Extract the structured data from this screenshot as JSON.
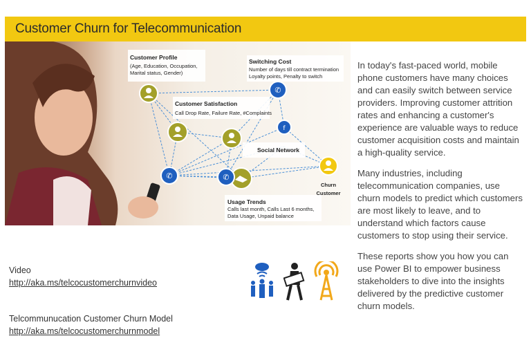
{
  "header": {
    "title": "Customer Churn for Telecommunication",
    "accent_color": "#f2c811"
  },
  "hero": {
    "nodes": {
      "customer_profile_title": "Customer Profile",
      "customer_profile_text_1": "(Age, Education, Occupation,",
      "customer_profile_text_2": "Marital status, Gender)",
      "switching_cost_title": "Switching Cost",
      "switching_cost_text_1": "Number of days till contract termination",
      "switching_cost_text_2": "Loyalty points, Penalty to switch",
      "customer_satisfaction_title": "Customer Satisfaction",
      "customer_satisfaction_text": "Call Drop Rate, Failure Rate, #Complaints",
      "social_network_title": "Social Network",
      "usage_trends_title": "Usage Trends",
      "usage_trends_text_1": "Calls last month, Calls Last 6 months,",
      "usage_trends_text_2": "Data Usage, Unpaid balance",
      "churn_label_1": "Churn",
      "churn_label_2": "Customer"
    }
  },
  "description": {
    "paragraph_1": "In today's fast-paced world, mobile phone customers have many choices and can easily switch between service providers.  Improving customer attrition rates and enhancing a customer's experience are valuable ways to reduce customer acquisition costs and maintain a high-quality service.",
    "paragraph_2": "Many industries, including telecommunication companies, use churn models to predict which customers are most likely to leave, and to understand which factors cause customers to stop using their service.",
    "paragraph_3": "These reports show you how you can use Power BI to empower business stakeholders to dive into the insights delivered by the predictive customer churn models."
  },
  "links": {
    "video_label": "Video",
    "video_url": "http://aka.ms/telcocustomerchurnvideo",
    "model_label": "Telcommunucation Customer Churn Model",
    "model_url": "http://aka.ms/telcocustomerchurnmodel"
  },
  "icons": [
    "family-network-icon",
    "person-holding-box-icon",
    "antenna-tower-icon"
  ],
  "colors": {
    "blue_node": "#1f5fbf",
    "olive_node": "#a3a02a",
    "churn_node": "#f2c811"
  }
}
